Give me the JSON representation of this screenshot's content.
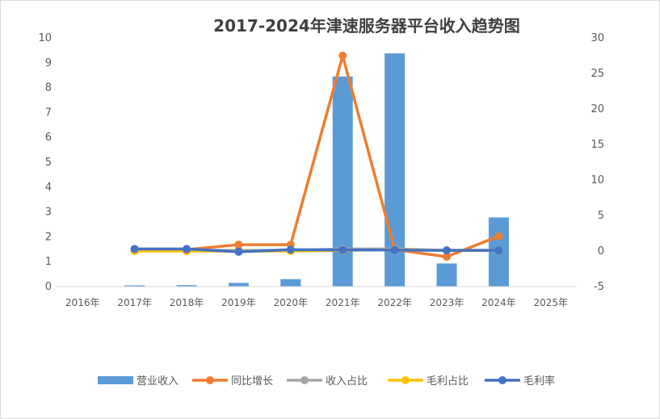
{
  "chart_data": {
    "type": "bar",
    "title": "2017-2024年津速服务器平台收入趋势图",
    "categories": [
      "2016年",
      "2017年",
      "2018年",
      "2019年",
      "2020年",
      "2021年",
      "2022年",
      "2023年",
      "2024年",
      "2025年"
    ],
    "y_left": {
      "min": 0,
      "max": 10,
      "step": 1,
      "ticks": [
        "0",
        "1",
        "2",
        "3",
        "4",
        "5",
        "6",
        "7",
        "8",
        "9",
        "10"
      ]
    },
    "y_right": {
      "min": -5,
      "max": 30,
      "step": 5,
      "ticks": [
        "-5",
        "0",
        "5",
        "10",
        "15",
        "20",
        "25",
        "30"
      ]
    },
    "grid": false,
    "legend_position": "bottom",
    "series": [
      {
        "name": "营业收入",
        "kind": "bar",
        "axis": "left",
        "color": "#5B9BD5",
        "values": [
          null,
          0.05,
          0.06,
          0.15,
          0.3,
          8.45,
          9.38,
          0.93,
          2.78,
          null
        ]
      },
      {
        "name": "同比增长",
        "kind": "line",
        "axis": "right",
        "color": "#ED7D31",
        "values": [
          null,
          null,
          0.2,
          0.9,
          0.9,
          27.5,
          0.2,
          -0.8,
          2.1,
          null
        ]
      },
      {
        "name": "收入占比",
        "kind": "line",
        "axis": "right",
        "color": "#A5A5A5",
        "values": [
          null,
          0.1,
          0.1,
          0.1,
          0.1,
          0.3,
          0.3,
          0.1,
          0.1,
          null
        ]
      },
      {
        "name": "毛利占比",
        "kind": "line",
        "axis": "right",
        "color": "#FFC000",
        "values": [
          null,
          0.0,
          0.0,
          null,
          0.0,
          0.1,
          0.2,
          0.1,
          0.1,
          null
        ]
      },
      {
        "name": "毛利率",
        "kind": "line",
        "axis": "right",
        "color": "#4472C4",
        "values": [
          null,
          0.3,
          0.3,
          -0.1,
          0.2,
          0.15,
          0.15,
          0.1,
          0.1,
          null
        ]
      }
    ]
  }
}
